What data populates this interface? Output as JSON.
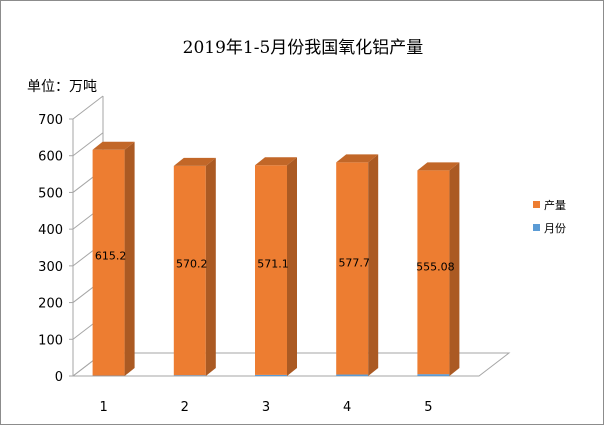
{
  "chart_data": {
    "type": "bar",
    "title": "2019年1-5月份我国氧化铝产量",
    "unit_label": "单位：万吨",
    "categories": [
      "1",
      "2",
      "3",
      "4",
      "5"
    ],
    "series": [
      {
        "name": "产量",
        "values": [
          615.2,
          570.2,
          571.1,
          577.7,
          555.08
        ],
        "color": "#ED7D31"
      },
      {
        "name": "月份",
        "values": [
          1,
          2,
          3,
          4,
          5
        ],
        "color": "#5B9BD5"
      }
    ],
    "data_labels": [
      "615.2",
      "570.2",
      "571.1",
      "577.7",
      "555.08"
    ],
    "y_ticks": [
      "0",
      "100",
      "200",
      "300",
      "400",
      "500",
      "600",
      "700"
    ],
    "ylim": [
      0,
      700
    ],
    "stacked": true,
    "legend_position": "right",
    "grid": false,
    "style": "3d-column"
  }
}
